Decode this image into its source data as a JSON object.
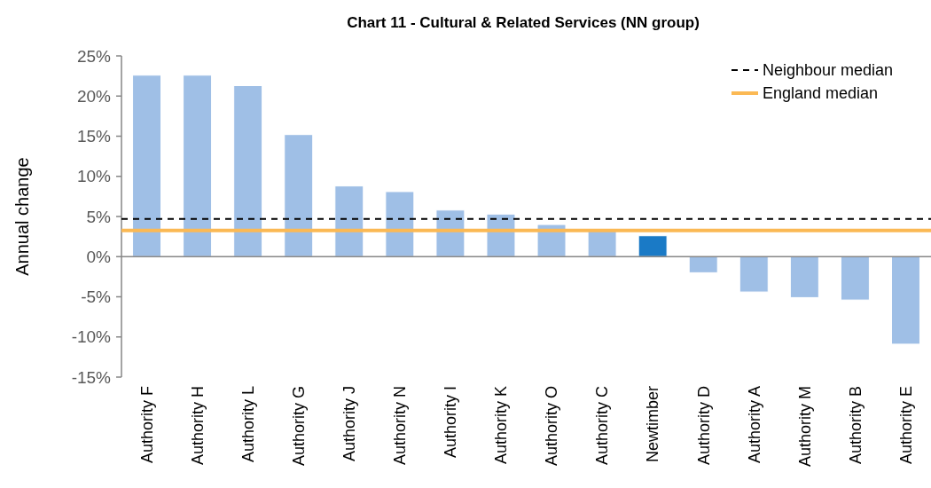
{
  "chart_data": {
    "type": "bar",
    "title": "Chart 11 - Cultural & Related Services (NN group)",
    "ylabel": "Annual change",
    "categories": [
      "Authority F",
      "Authority H",
      "Authority L",
      "Authority G",
      "Authority J",
      "Authority N",
      "Authority I",
      "Authority K",
      "Authority O",
      "Authority C",
      "Newtimber",
      "Authority D",
      "Authority A",
      "Authority M",
      "Authority B",
      "Authority E"
    ],
    "values": [
      22.6,
      22.6,
      21.3,
      15.2,
      8.8,
      8.1,
      5.8,
      5.3,
      4.0,
      3.3,
      2.6,
      -2.0,
      -4.4,
      -5.1,
      -5.4,
      -10.9
    ],
    "colors": [
      "#9fbfe6",
      "#9fbfe6",
      "#9fbfe6",
      "#9fbfe6",
      "#9fbfe6",
      "#9fbfe6",
      "#9fbfe6",
      "#9fbfe6",
      "#9fbfe6",
      "#9fbfe6",
      "#1a7ac6",
      "#9fbfe6",
      "#9fbfe6",
      "#9fbfe6",
      "#9fbfe6",
      "#9fbfe6"
    ],
    "ylim": [
      -15,
      25
    ],
    "yticks": [
      {
        "value": -15,
        "label": "-15%"
      },
      {
        "value": -10,
        "label": "-10%"
      },
      {
        "value": -5,
        "label": "-5%"
      },
      {
        "value": 0,
        "label": "0%"
      },
      {
        "value": 5,
        "label": "5%"
      },
      {
        "value": 10,
        "label": "10%"
      },
      {
        "value": 15,
        "label": "15%"
      },
      {
        "value": 20,
        "label": "20%"
      },
      {
        "value": 25,
        "label": "25%"
      }
    ],
    "ref_lines": [
      {
        "axis": "y",
        "value": 4.7,
        "label": "Neighbour median",
        "color": "#000000",
        "line_style": "dashed"
      },
      {
        "axis": "y",
        "value": 3.25,
        "label": "England median",
        "color": "#fbb954",
        "line_style": "solid"
      }
    ],
    "legend": "top right"
  }
}
